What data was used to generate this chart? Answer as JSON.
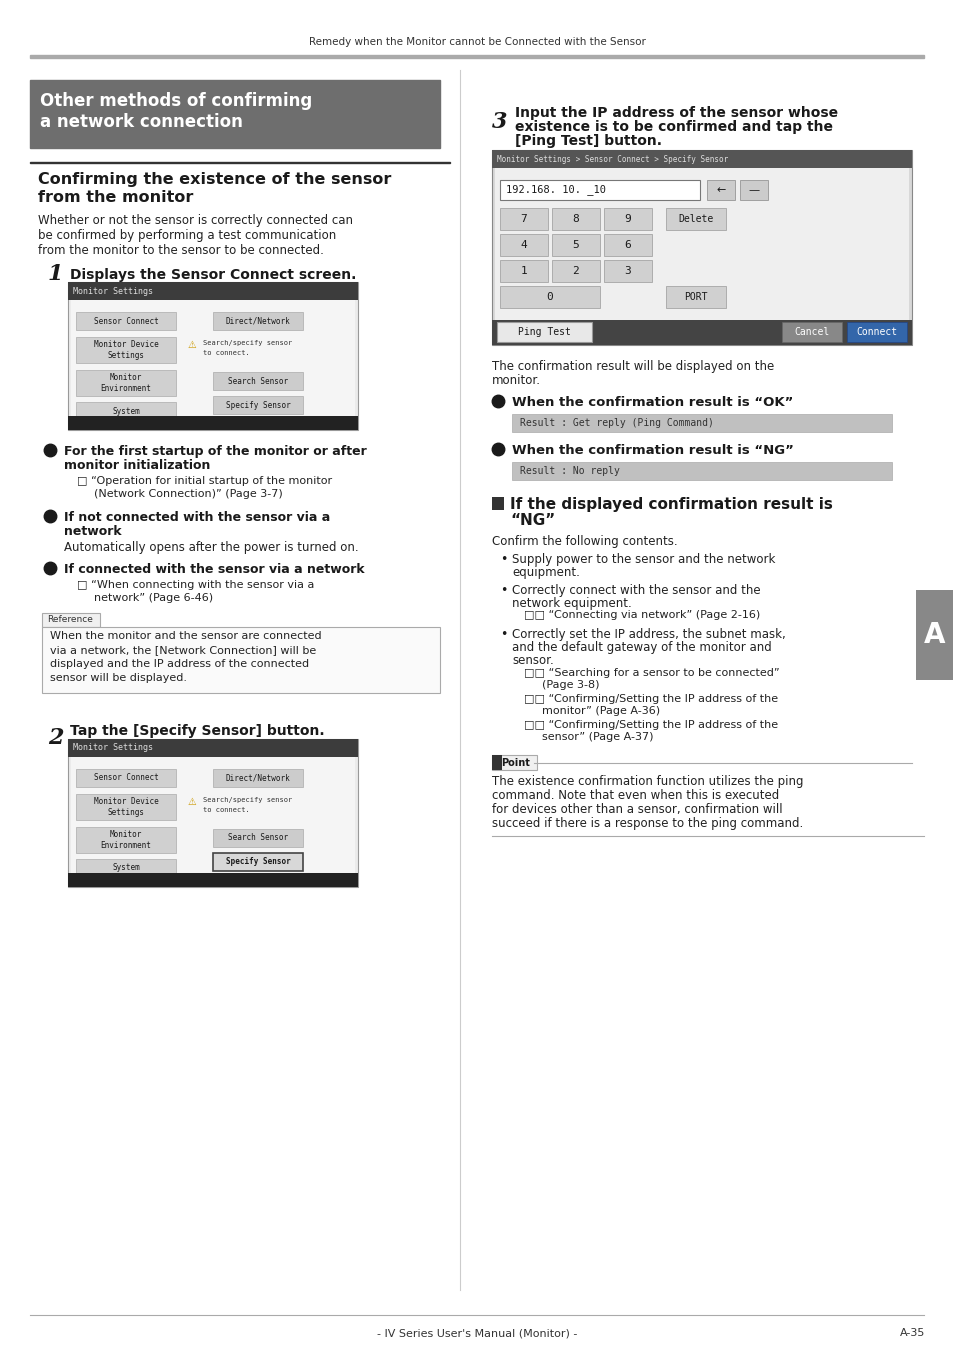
{
  "page_bg": "#ffffff",
  "header_text": "Remedy when the Monitor cannot be Connected with the Sensor",
  "header_color": "#333333",
  "gray_bar_bg": "#6e6e6e",
  "gray_bar_text_color": "#ffffff",
  "section_title_color": "#1a1a1a",
  "footer_left": "- IV Series User's Manual (Monitor) -",
  "footer_right": "A-35",
  "right_tab_text": "A",
  "right_tab_bg": "#888888",
  "right_tab_text_color": "#ffffff"
}
